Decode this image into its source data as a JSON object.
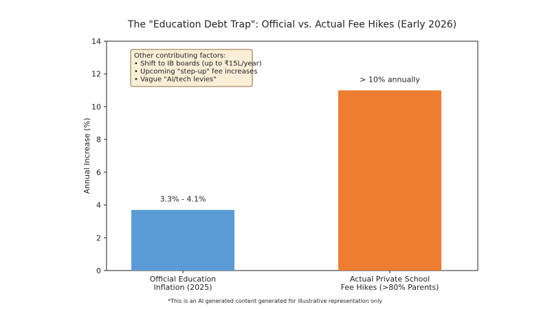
{
  "chart_data": {
    "type": "bar",
    "title": "The \"Education Debt Trap\": Official vs. Actual Fee Hikes (Early 2026)",
    "xlabel": "",
    "ylabel": "Annual Increase (%)",
    "ylim": [
      0,
      14
    ],
    "yticks": [
      "0",
      "2",
      "4",
      "6",
      "8",
      "10",
      "12",
      "14"
    ],
    "grid": false,
    "categories": [
      [
        "Official Education",
        "Inflation (2025)"
      ],
      [
        "Actual Private School",
        "Fee Hikes (>80% Parents)"
      ]
    ],
    "values": [
      3.7,
      11.0
    ],
    "colors": [
      "#5b9bd5",
      "#ed7d31"
    ],
    "data_labels": [
      "3.3% - 4.1%",
      "> 10% annually"
    ],
    "annotation": {
      "lines": [
        "Other contributing factors:",
        "• Shift to IB boards (up to ₹15L/year)",
        "• Upcoming \"step-up\" fee increases",
        "• Vague \"AI/tech levies\""
      ],
      "background": "#fbeed7",
      "border": "#8a6d3b"
    }
  },
  "footer": {
    "disclaimer": "*This is an AI generated content generated for illustrative representation only"
  }
}
